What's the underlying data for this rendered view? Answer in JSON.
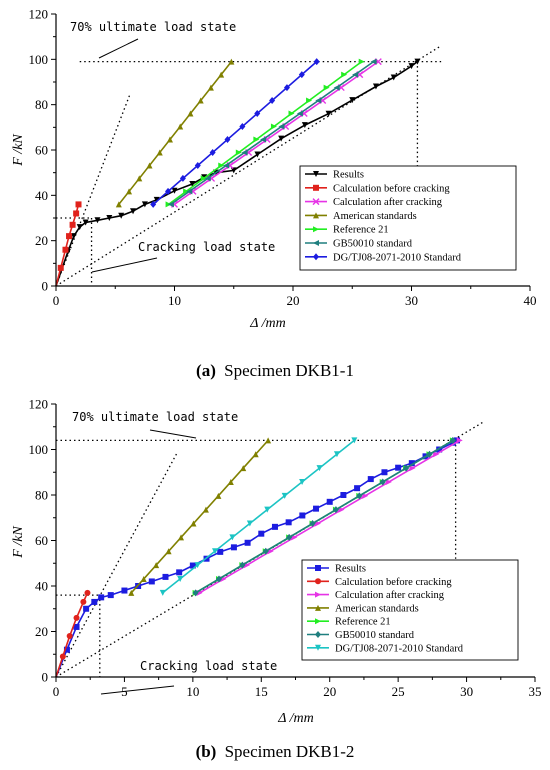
{
  "chart_data": [
    {
      "type": "line",
      "caption_letter": "(a)",
      "caption_text": "Specimen DKB1-1",
      "xlabel": "Δ /mm",
      "ylabel": "F /kN",
      "xlim": [
        0,
        40
      ],
      "ylim": [
        0,
        120
      ],
      "xticks": [
        0,
        10,
        20,
        30,
        40
      ],
      "yticks": [
        0,
        20,
        40,
        60,
        80,
        100,
        120
      ],
      "legend_position": "lower-right",
      "annotations": [
        "70% ultimate load state",
        "Cracking load state"
      ],
      "series": [
        {
          "name": "Results",
          "color": "#000000",
          "marker": "triangle-down",
          "x": [
            0,
            1.0,
            1.5,
            2.0,
            2.5,
            3.5,
            4.5,
            5.5,
            6.5,
            7.5,
            8.5,
            10.0,
            11.5,
            12.5,
            13.5,
            15.0,
            17.0,
            19.0,
            21.0,
            23.0,
            25.0,
            27.0,
            28.5,
            30.0,
            30.5
          ],
          "y": [
            0,
            15,
            22,
            26,
            28,
            29,
            30,
            31,
            33,
            36,
            38,
            42,
            45,
            48,
            50,
            51,
            58,
            65,
            71,
            76,
            82,
            88,
            92,
            97,
            99
          ]
        },
        {
          "name": "Calculation before cracking",
          "color": "#e0221c",
          "marker": "square",
          "x": [
            0,
            0.4,
            0.8,
            1.1,
            1.4,
            1.7,
            1.9
          ],
          "y": [
            0,
            8,
            16,
            22,
            27,
            32,
            36
          ]
        },
        {
          "name": "Calculation after cracking",
          "color": "#e633e6",
          "marker": "x",
          "x": [
            10.0,
            27.2
          ],
          "y": [
            36,
            99
          ]
        },
        {
          "name": "American standards",
          "color": "#808000",
          "marker": "triangle-up",
          "x": [
            5.3,
            14.8
          ],
          "y": [
            36,
            99
          ]
        },
        {
          "name": "Reference 21",
          "color": "#22ee22",
          "marker": "triangle-right",
          "x": [
            9.5,
            25.8
          ],
          "y": [
            36,
            99
          ]
        },
        {
          "name": "GB50010 standard",
          "color": "#1f7f7f",
          "marker": "triangle-left",
          "x": [
            9.7,
            26.8
          ],
          "y": [
            36,
            99
          ]
        },
        {
          "name": "DG/TJ08-2071-2010 Standard",
          "color": "#1c1ce0",
          "marker": "diamond",
          "x": [
            8.2,
            22.0
          ],
          "y": [
            36,
            99
          ]
        }
      ]
    },
    {
      "type": "line",
      "caption_letter": "(b)",
      "caption_text": "Specimen DKB1-2",
      "xlabel": "Δ /mm",
      "ylabel": "F /kN",
      "xlim": [
        0,
        35
      ],
      "ylim": [
        0,
        120
      ],
      "xticks": [
        0,
        5,
        10,
        15,
        20,
        25,
        30,
        35
      ],
      "yticks": [
        0,
        20,
        40,
        60,
        80,
        100,
        120
      ],
      "legend_position": "lower-right",
      "annotations": [
        "70% ultimate load state",
        "Cracking load state"
      ],
      "series": [
        {
          "name": "Results",
          "color": "#1c1ce0",
          "marker": "square",
          "x": [
            0,
            0.8,
            1.5,
            2.2,
            2.8,
            3.3,
            4.0,
            5.0,
            6.0,
            7.0,
            8.0,
            9.0,
            10.0,
            11.0,
            12.0,
            13.0,
            14.0,
            15.0,
            16.0,
            17.0,
            18.0,
            19.0,
            20.0,
            21.0,
            22.0,
            23.0,
            24.0,
            25.0,
            26.0,
            27.0,
            28.0,
            29.0,
            29.3
          ],
          "y": [
            0,
            12,
            22,
            30,
            33,
            35,
            36,
            38,
            40,
            42,
            44,
            46,
            49,
            52,
            55,
            57,
            59,
            63,
            66,
            68,
            71,
            74,
            77,
            80,
            83,
            87,
            90,
            92,
            94,
            97,
            100,
            103,
            104
          ]
        },
        {
          "name": "Calculation before cracking",
          "color": "#e0221c",
          "marker": "circle",
          "x": [
            0,
            0.5,
            1.0,
            1.5,
            2.0,
            2.3
          ],
          "y": [
            0,
            9,
            18,
            26,
            33,
            37
          ]
        },
        {
          "name": "Calculation after cracking",
          "color": "#e633e6",
          "marker": "triangle-right",
          "x": [
            10.5,
            29.5
          ],
          "y": [
            37,
            104
          ]
        },
        {
          "name": "American standards",
          "color": "#808000",
          "marker": "triangle-up",
          "x": [
            5.5,
            15.5
          ],
          "y": [
            37,
            104
          ]
        },
        {
          "name": "Reference 21",
          "color": "#22ee22",
          "marker": "triangle-right",
          "x": [
            10.2,
            29.0
          ],
          "y": [
            37,
            104
          ]
        },
        {
          "name": "GB50010 standard",
          "color": "#1f7f7f",
          "marker": "diamond",
          "x": [
            10.2,
            29.0
          ],
          "y": [
            37,
            104
          ]
        },
        {
          "name": "DG/TJ08-2071-2010 Standard",
          "color": "#1cc4c4",
          "marker": "triangle-down",
          "x": [
            7.8,
            21.8
          ],
          "y": [
            37,
            104
          ]
        }
      ]
    }
  ]
}
